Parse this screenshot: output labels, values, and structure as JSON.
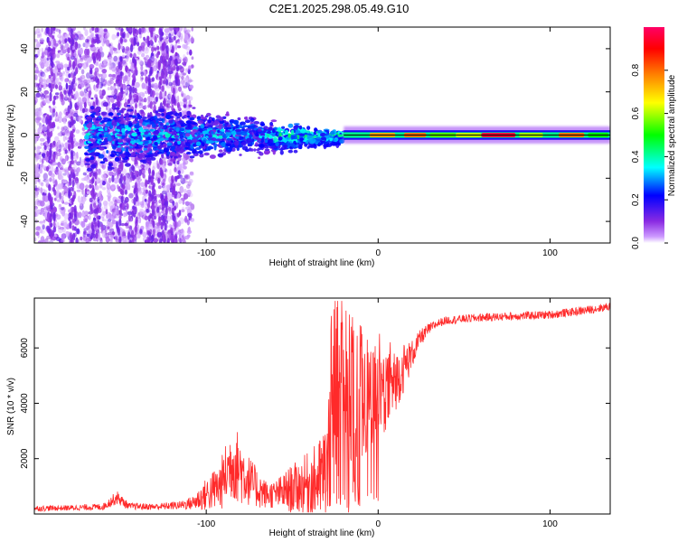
{
  "title": "C2E1.2025.298.05.49.G10",
  "chart_data": [
    {
      "type": "heatmap",
      "xlabel": "Height of straight line (km)",
      "ylabel": "Frequency (Hz)",
      "xlim": [
        -200,
        135
      ],
      "ylim": [
        -50,
        50
      ],
      "xticks": [
        -100,
        0,
        100
      ],
      "yticks": [
        -40,
        -20,
        0,
        20,
        40
      ],
      "colorbar": {
        "label": "Normalized spectral amplitude",
        "range": [
          0,
          1
        ],
        "ticks": [
          0.0,
          0.2,
          0.4,
          0.6,
          0.8
        ],
        "tick_labels": [
          "0.0",
          "0.2",
          "0.4",
          "0.6",
          "0.8"
        ],
        "colors": [
          "#ffffff",
          "#8a2be2",
          "#0000ff",
          "#00ffff",
          "#00ff00",
          "#ffff00",
          "#ff8000",
          "#ff0000",
          "#ff00aa"
        ]
      },
      "features": [
        {
          "name": "scattered noise",
          "x_range": [
            -200,
            -110
          ],
          "y_range": [
            -50,
            50
          ],
          "level": 0.1
        },
        {
          "name": "broadening core",
          "x_range": [
            -170,
            -20
          ],
          "y_range": [
            -10,
            10
          ],
          "level": 0.3
        },
        {
          "name": "narrow carrier line",
          "x_range": [
            -20,
            135
          ],
          "y_center": 0,
          "level": 0.9
        }
      ],
      "line_color": "#000000"
    },
    {
      "type": "line",
      "xlabel": "Height of straight line (km)",
      "ylabel": "SNR (10 * v/v)",
      "xlim": [
        -200,
        135
      ],
      "ylim": [
        0,
        7800
      ],
      "xticks": [
        -100,
        0,
        100
      ],
      "yticks": [
        2000,
        4000,
        6000
      ],
      "series": [
        {
          "name": "SNR",
          "color": "#ff2a2a",
          "x": [
            -200,
            -180,
            -160,
            -152,
            -145,
            -130,
            -115,
            -108,
            -100,
            -92,
            -85,
            -80,
            -75,
            -70,
            -65,
            -60,
            -55,
            -50,
            -45,
            -40,
            -35,
            -30,
            -27,
            -25,
            -22,
            -20,
            -17,
            -15,
            -12,
            -10,
            -5,
            0,
            5,
            10,
            15,
            20,
            25,
            30,
            35,
            40,
            50,
            60,
            80,
            100,
            120,
            135
          ],
          "values": [
            200,
            220,
            260,
            600,
            280,
            260,
            320,
            400,
            700,
            1000,
            1900,
            1600,
            1200,
            900,
            700,
            700,
            800,
            900,
            1000,
            1100,
            1200,
            1500,
            3000,
            3500,
            4200,
            3600,
            3000,
            3400,
            2800,
            3600,
            3900,
            4000,
            4400,
            4800,
            5300,
            5800,
            6400,
            6700,
            6900,
            7000,
            7050,
            7100,
            7150,
            7200,
            7350,
            7500
          ],
          "noise": [
            100,
            100,
            120,
            250,
            120,
            120,
            150,
            250,
            600,
            900,
            1400,
            1300,
            900,
            700,
            500,
            500,
            700,
            900,
            1000,
            1200,
            1400,
            2000,
            3000,
            3500,
            3400,
            3200,
            3000,
            3000,
            2800,
            2400,
            1900,
            1700,
            1400,
            1100,
            900,
            500,
            300,
            200,
            150,
            150,
            150,
            150,
            150,
            150,
            150,
            150
          ]
        }
      ]
    }
  ]
}
